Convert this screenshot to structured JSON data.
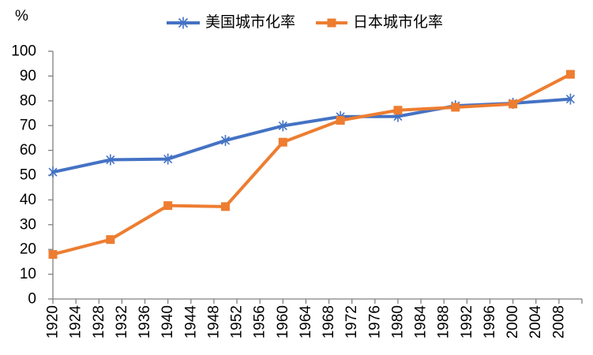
{
  "chart_data": {
    "type": "line",
    "title": "",
    "unit_label": "%",
    "xlabel": "",
    "ylabel": "%",
    "grid": false,
    "legend_position": "top-center",
    "axis_color": "#808080",
    "text_color": "#000000",
    "background_color": "#ffffff",
    "ylim": [
      0,
      100
    ],
    "ytick_step": 10,
    "x_axis_range": [
      1920,
      2012
    ],
    "x_years": [
      1920,
      1930,
      1940,
      1950,
      1960,
      1970,
      1980,
      1990,
      2000,
      2010
    ],
    "xtick_labels": [
      "1920",
      "1924",
      "1928",
      "1932",
      "1936",
      "1940",
      "1944",
      "1948",
      "1952",
      "1956",
      "1960",
      "1964",
      "1968",
      "1972",
      "1976",
      "1980",
      "1984",
      "1988",
      "1992",
      "1996",
      "2000",
      "2004",
      "2008"
    ],
    "series": [
      {
        "name": "美国城市化率",
        "color": "#4472C4",
        "marker": "asterisk",
        "values": [
          51.2,
          56.2,
          56.5,
          64.0,
          69.9,
          73.6,
          73.7,
          78.0,
          79.0,
          80.7
        ]
      },
      {
        "name": "日本城市化率",
        "color": "#ED7D31",
        "marker": "square",
        "values": [
          18.0,
          24.0,
          37.7,
          37.3,
          63.3,
          72.1,
          76.2,
          77.4,
          78.7,
          90.7
        ]
      }
    ]
  }
}
